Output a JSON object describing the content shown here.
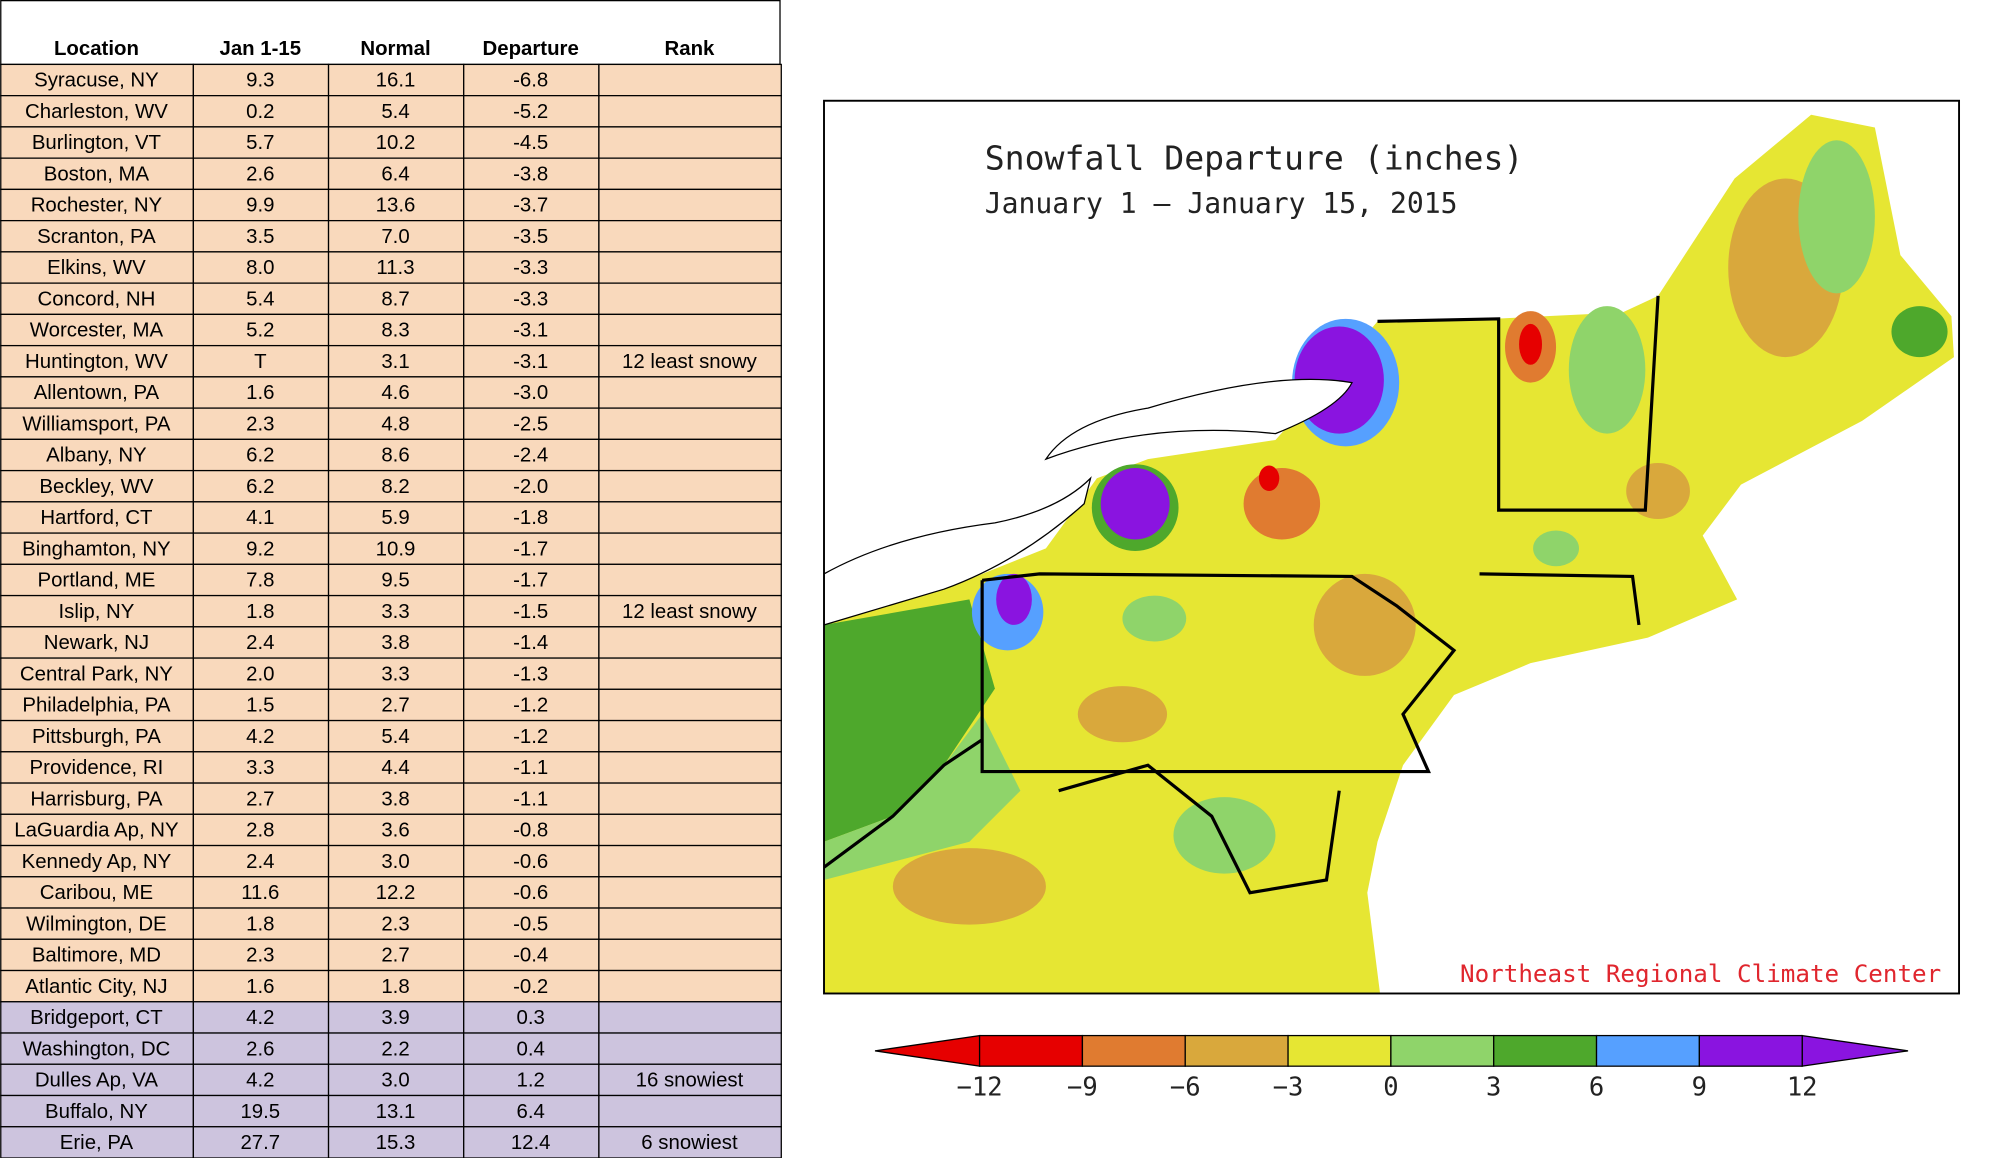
{
  "table": {
    "headers": [
      "Location",
      "Jan 1-15",
      "Normal",
      "Departure",
      "Rank"
    ],
    "rows": [
      [
        "Syracuse, NY",
        "9.3",
        "16.1",
        "-6.8"
      ],
      [
        "Charleston, WV",
        "0.2",
        "5.4",
        "-5.2"
      ],
      [
        "Burlington, VT",
        "5.7",
        "10.2",
        "-4.5"
      ],
      [
        "Boston, MA",
        "2.6",
        "6.4",
        "-3.8"
      ],
      [
        "Rochester, NY",
        "9.9",
        "13.6",
        "-3.7"
      ],
      [
        "Scranton, PA",
        "3.5",
        "7.0",
        "-3.5"
      ],
      [
        "Elkins, WV",
        "8.0",
        "11.3",
        "-3.3"
      ],
      [
        "Concord, NH",
        "5.4",
        "8.7",
        "-3.3"
      ],
      [
        "Worcester, MA",
        "5.2",
        "8.3",
        "-3.1"
      ],
      [
        "Huntington, WV",
        "T",
        "3.1",
        "-3.1",
        "12 least snowy"
      ],
      [
        "Allentown, PA",
        "1.6",
        "4.6",
        "-3.0"
      ],
      [
        "Williamsport, PA",
        "2.3",
        "4.8",
        "-2.5"
      ],
      [
        "Albany, NY",
        "6.2",
        "8.6",
        "-2.4"
      ],
      [
        "Beckley, WV",
        "6.2",
        "8.2",
        "-2.0"
      ],
      [
        "Hartford, CT",
        "4.1",
        "5.9",
        "-1.8"
      ],
      [
        "Binghamton, NY",
        "9.2",
        "10.9",
        "-1.7"
      ],
      [
        "Portland, ME",
        "7.8",
        "9.5",
        "-1.7"
      ],
      [
        "Islip, NY",
        "1.8",
        "3.3",
        "-1.5",
        "12 least snowy"
      ],
      [
        "Newark, NJ",
        "2.4",
        "3.8",
        "-1.4"
      ],
      [
        "Central Park, NY",
        "2.0",
        "3.3",
        "-1.3"
      ],
      [
        "Philadelphia, PA",
        "1.5",
        "2.7",
        "-1.2"
      ],
      [
        "Pittsburgh, PA",
        "4.2",
        "5.4",
        "-1.2"
      ],
      [
        "Providence, RI",
        "3.3",
        "4.4",
        "-1.1"
      ],
      [
        "Harrisburg, PA",
        "2.7",
        "3.8",
        "-1.1"
      ],
      [
        "LaGuardia Ap, NY",
        "2.8",
        "3.6",
        "-0.8"
      ],
      [
        "Kennedy Ap, NY",
        "2.4",
        "3.0",
        "-0.6"
      ],
      [
        "Caribou, ME",
        "11.6",
        "12.2",
        "-0.6"
      ],
      [
        "Wilmington, DE",
        "1.8",
        "2.3",
        "-0.5"
      ],
      [
        "Baltimore, MD",
        "2.3",
        "2.7",
        "-0.4"
      ],
      [
        "Atlantic City, NJ",
        "1.6",
        "1.8",
        "-0.2"
      ],
      [
        "Bridgeport, CT",
        "4.2",
        "3.9",
        "0.3"
      ],
      [
        "Washington, DC",
        "2.6",
        "2.2",
        "0.4"
      ],
      [
        "Dulles Ap, VA",
        "4.2",
        "3.0",
        "1.2",
        "16 snowiest"
      ],
      [
        "Buffalo, NY",
        "19.5",
        "13.1",
        "6.4"
      ],
      [
        "Erie, PA",
        "27.7",
        "15.3",
        "12.4",
        "6 snowiest"
      ]
    ]
  },
  "map": {
    "title": "Snowfall Departure (inches)",
    "subtitle": "January 1 — January 15, 2015",
    "credit": "Northeast Regional Climate Center",
    "colorbar": {
      "ticks": [
        {
          "value": -12,
          "label": "−12"
        },
        {
          "value": -9,
          "label": "−9"
        },
        {
          "value": -6,
          "label": "−6"
        },
        {
          "value": -3,
          "label": "−3"
        },
        0,
        3,
        6,
        9,
        12
      ],
      "colors": [
        "#e60000",
        "#e07b30",
        "#d9a83c",
        "#e6e633",
        "#8fd46a",
        "#4ea82c",
        "#56a0ff",
        "#8a14e0"
      ]
    }
  }
}
